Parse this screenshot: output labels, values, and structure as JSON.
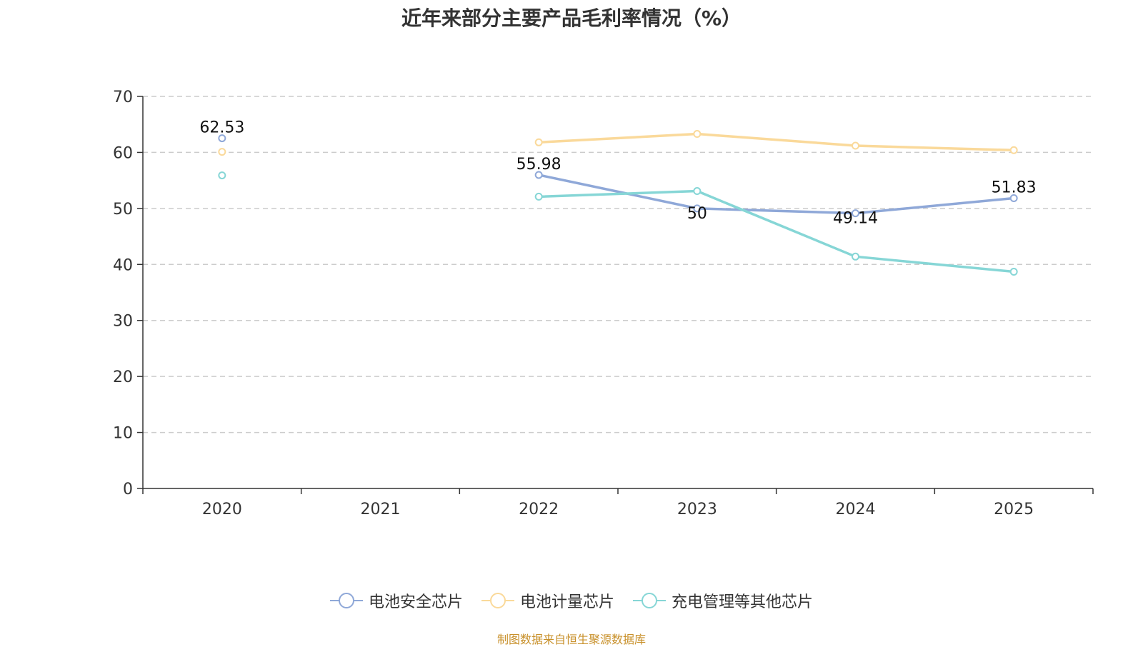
{
  "chart_data": {
    "type": "line",
    "title": "近年来部分主要产品毛利率情况（%）",
    "categories": [
      "2020",
      "2021",
      "2022",
      "2023",
      "2024",
      "2025"
    ],
    "ylim": [
      0,
      70
    ],
    "yticks": [
      0,
      10,
      20,
      30,
      40,
      50,
      60,
      70
    ],
    "grid": true,
    "legend_position": "bottom-center",
    "series": [
      {
        "name": "电池安全芯片",
        "color": "#8fa8d8",
        "values": [
          62.53,
          null,
          55.98,
          50,
          49.14,
          51.83
        ],
        "labels": [
          "62.53",
          "",
          "55.98",
          "50",
          "49.14",
          "51.83"
        ]
      },
      {
        "name": "电池计量芯片",
        "color": "#fad99a",
        "values": [
          60.1,
          null,
          61.8,
          63.3,
          61.2,
          60.4
        ],
        "labels": [
          "",
          "",
          "",
          "",
          "",
          ""
        ]
      },
      {
        "name": "充电管理等其他芯片",
        "color": "#86d6d6",
        "values": [
          55.9,
          null,
          52.1,
          53.1,
          41.4,
          38.7
        ],
        "labels": [
          "",
          "",
          "",
          "",
          "",
          ""
        ]
      }
    ]
  },
  "source": "制图数据来自恒生聚源数据库"
}
